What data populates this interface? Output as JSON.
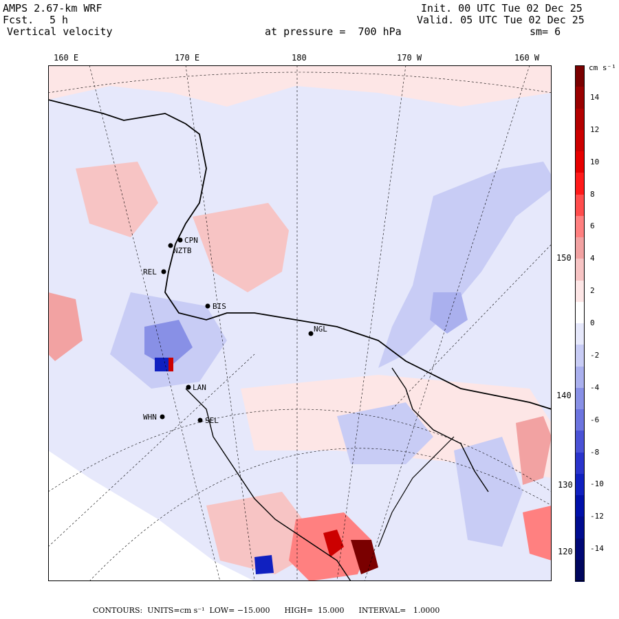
{
  "header": {
    "model": "AMPS 2.67-km WRF",
    "fcst_label": "Fcst.",
    "fcst_value": "5 h",
    "field": "Vertical velocity",
    "init": "Init. 00 UTC Tue 02 Dec 25",
    "valid": "Valid. 05 UTC Tue 02 Dec 25",
    "pressure": "at pressure =  700 hPa",
    "smooth": "sm= 6"
  },
  "longitude_labels": [
    "160 E",
    "170 E",
    "180",
    "170 W",
    "160 W"
  ],
  "latitude_labels": [
    "150 W",
    "140 W",
    "130 W",
    "120 W"
  ],
  "stations": [
    {
      "id": "CPN",
      "label": "CPN"
    },
    {
      "id": "NZTB",
      "label": "NZTB"
    },
    {
      "id": "REL",
      "label": "REL"
    },
    {
      "id": "BIS",
      "label": "BIS"
    },
    {
      "id": "NGL",
      "label": "NGL"
    },
    {
      "id": "LAN",
      "label": "LAN"
    },
    {
      "id": "WHN",
      "label": "WHN"
    },
    {
      "id": "SEL",
      "label": "SEL"
    }
  ],
  "colorbar": {
    "units_label": "cm s⁻¹",
    "ticks": [
      "14",
      "12",
      "10",
      "8",
      "6",
      "4",
      "2",
      "0",
      "-2",
      "-4",
      "-6",
      "-8",
      "-10",
      "-12",
      "-14"
    ],
    "colors": [
      "#7a0000",
      "#990000",
      "#b30000",
      "#cc0000",
      "#e60000",
      "#ff1a1a",
      "#ff4d4d",
      "#ff8080",
      "#f2a2a2",
      "#f7c4c4",
      "#fde6e6",
      "#ffffff",
      "#e6e8fb",
      "#c8ccf5",
      "#aab0ee",
      "#8890e6",
      "#6c74df",
      "#4a52d6",
      "#2a34cc",
      "#1020c0",
      "#0010aa",
      "#000c90",
      "#000876",
      "#00065e"
    ]
  },
  "footer": {
    "contours": "CONTOURS:  UNITS=cm s⁻¹  LOW= −15.000      HIGH=  15.000      INTERVAL=   1.0000"
  }
}
